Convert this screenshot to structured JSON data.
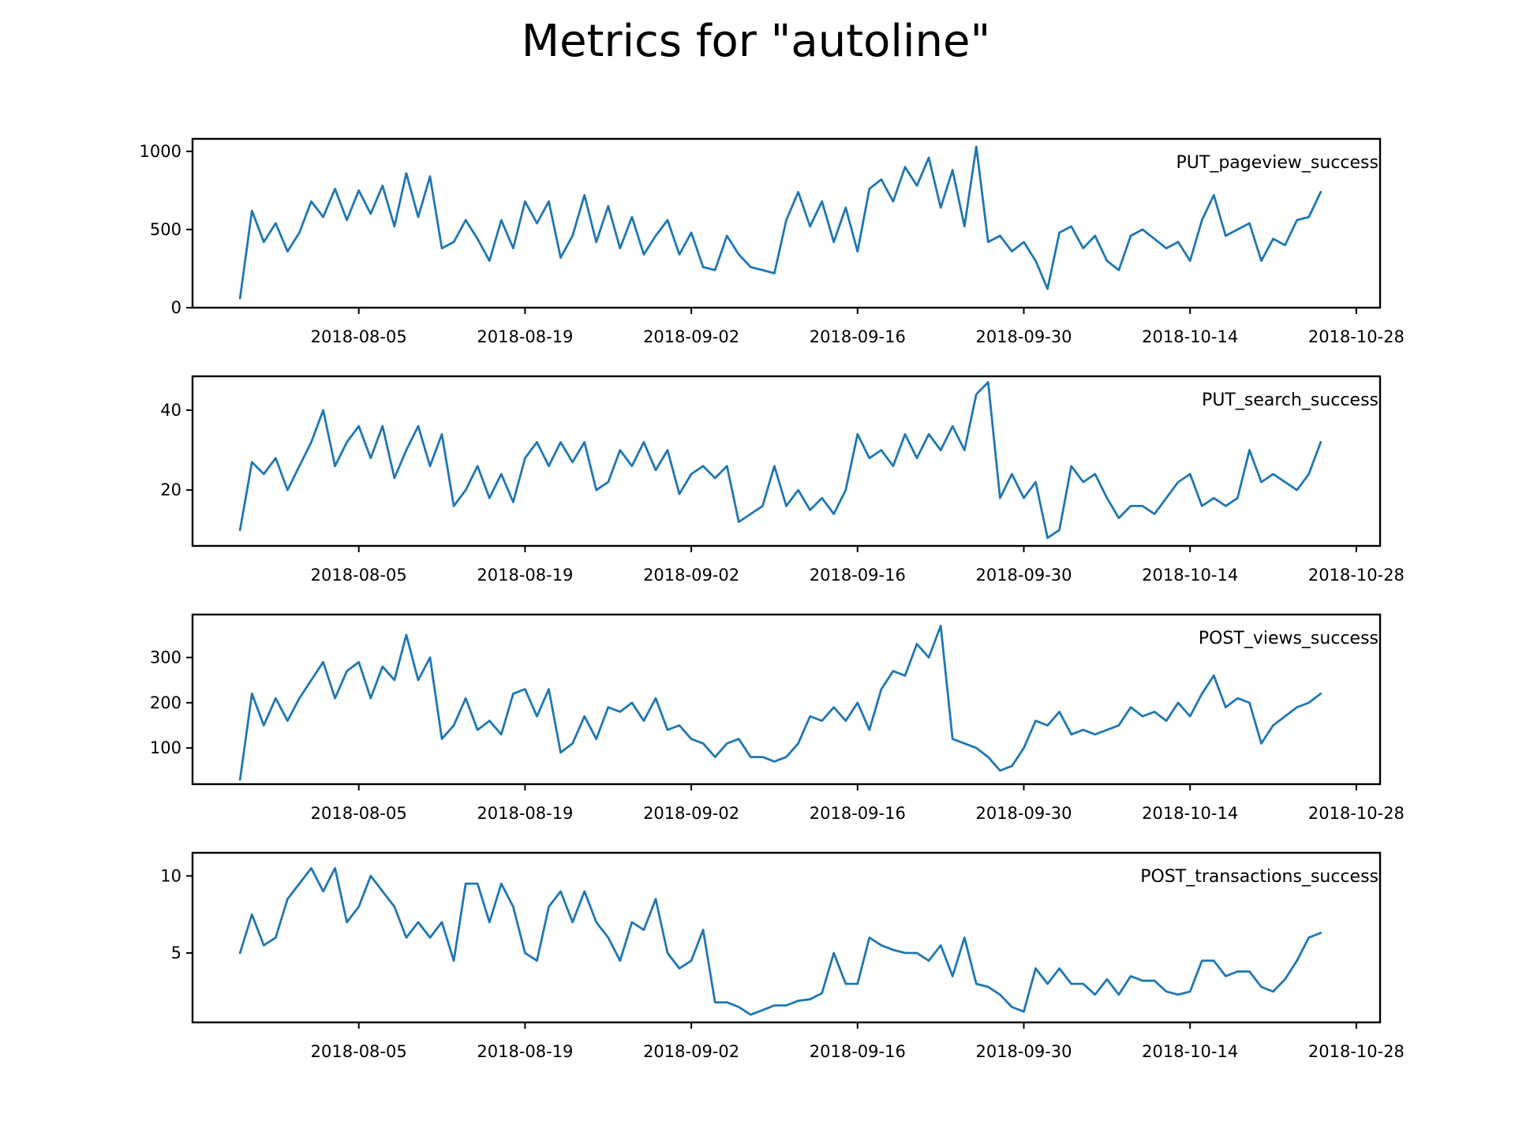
{
  "figure": {
    "title": "Metrics for \"autoline\"",
    "line_color": "#1f77b4"
  },
  "chart_data": [
    {
      "type": "line",
      "series_label": "PUT_pageview_success",
      "xticks": [
        "2018-08-05",
        "2018-08-19",
        "2018-09-02",
        "2018-09-16",
        "2018-09-30",
        "2018-10-14",
        "2018-10-28"
      ],
      "xlim": [
        "2018-07-22",
        "2018-10-30"
      ],
      "yticks": [
        0,
        500,
        1000
      ],
      "ylim": [
        0,
        1080
      ],
      "grid": false,
      "series": [
        {
          "x": [
            "2018-07-26",
            "2018-07-27",
            "2018-07-28",
            "2018-07-29",
            "2018-07-30",
            "2018-07-31",
            "2018-08-01",
            "2018-08-02",
            "2018-08-03",
            "2018-08-04",
            "2018-08-05",
            "2018-08-06",
            "2018-08-07",
            "2018-08-08",
            "2018-08-09",
            "2018-08-10",
            "2018-08-11",
            "2018-08-12",
            "2018-08-13",
            "2018-08-14",
            "2018-08-15",
            "2018-08-16",
            "2018-08-17",
            "2018-08-18",
            "2018-08-19",
            "2018-08-20",
            "2018-08-21",
            "2018-08-22",
            "2018-08-23",
            "2018-08-24",
            "2018-08-25",
            "2018-08-26",
            "2018-08-27",
            "2018-08-28",
            "2018-08-29",
            "2018-08-30",
            "2018-08-31",
            "2018-09-01",
            "2018-09-02",
            "2018-09-03",
            "2018-09-04",
            "2018-09-05",
            "2018-09-06",
            "2018-09-07",
            "2018-09-08",
            "2018-09-09",
            "2018-09-10",
            "2018-09-11",
            "2018-09-12",
            "2018-09-13",
            "2018-09-14",
            "2018-09-15",
            "2018-09-16",
            "2018-09-17",
            "2018-09-18",
            "2018-09-19",
            "2018-09-20",
            "2018-09-21",
            "2018-09-22",
            "2018-09-23",
            "2018-09-24",
            "2018-09-25",
            "2018-09-26",
            "2018-09-27",
            "2018-09-28",
            "2018-09-29",
            "2018-09-30",
            "2018-10-01",
            "2018-10-02",
            "2018-10-03",
            "2018-10-04",
            "2018-10-05",
            "2018-10-06",
            "2018-10-07",
            "2018-10-08",
            "2018-10-09",
            "2018-10-10",
            "2018-10-11",
            "2018-10-12",
            "2018-10-13",
            "2018-10-14",
            "2018-10-15",
            "2018-10-16",
            "2018-10-17",
            "2018-10-18",
            "2018-10-19",
            "2018-10-20",
            "2018-10-21",
            "2018-10-22",
            "2018-10-23",
            "2018-10-24",
            "2018-10-25"
          ],
          "y": [
            60,
            620,
            420,
            540,
            360,
            480,
            680,
            580,
            760,
            560,
            750,
            600,
            780,
            520,
            860,
            580,
            840,
            380,
            420,
            560,
            440,
            300,
            560,
            380,
            680,
            540,
            680,
            320,
            460,
            720,
            420,
            650,
            380,
            580,
            340,
            460,
            560,
            340,
            480,
            260,
            240,
            460,
            340,
            260,
            240,
            220,
            560,
            740,
            520,
            680,
            420,
            640,
            360,
            760,
            820,
            680,
            900,
            780,
            960,
            640,
            880,
            520,
            1030,
            420,
            460,
            360,
            420,
            300,
            120,
            480,
            520,
            380,
            460,
            300,
            240,
            460,
            500,
            440,
            380,
            420,
            300,
            560,
            720,
            460,
            500,
            540,
            300,
            440,
            400,
            560,
            580,
            740
          ],
          "name": ""
        }
      ]
    },
    {
      "type": "line",
      "series_label": "PUT_search_success",
      "xticks": [
        "2018-08-05",
        "2018-08-19",
        "2018-09-02",
        "2018-09-16",
        "2018-09-30",
        "2018-10-14",
        "2018-10-28"
      ],
      "xlim": [
        "2018-07-22",
        "2018-10-30"
      ],
      "yticks": [
        20,
        40
      ],
      "ylim": [
        6,
        48.5
      ],
      "grid": false,
      "series": [
        {
          "x": [
            "2018-07-26",
            "2018-07-27",
            "2018-07-28",
            "2018-07-29",
            "2018-07-30",
            "2018-07-31",
            "2018-08-01",
            "2018-08-02",
            "2018-08-03",
            "2018-08-04",
            "2018-08-05",
            "2018-08-06",
            "2018-08-07",
            "2018-08-08",
            "2018-08-09",
            "2018-08-10",
            "2018-08-11",
            "2018-08-12",
            "2018-08-13",
            "2018-08-14",
            "2018-08-15",
            "2018-08-16",
            "2018-08-17",
            "2018-08-18",
            "2018-08-19",
            "2018-08-20",
            "2018-08-21",
            "2018-08-22",
            "2018-08-23",
            "2018-08-24",
            "2018-08-25",
            "2018-08-26",
            "2018-08-27",
            "2018-08-28",
            "2018-08-29",
            "2018-08-30",
            "2018-08-31",
            "2018-09-01",
            "2018-09-02",
            "2018-09-03",
            "2018-09-04",
            "2018-09-05",
            "2018-09-06",
            "2018-09-07",
            "2018-09-08",
            "2018-09-09",
            "2018-09-10",
            "2018-09-11",
            "2018-09-12",
            "2018-09-13",
            "2018-09-14",
            "2018-09-15",
            "2018-09-16",
            "2018-09-17",
            "2018-09-18",
            "2018-09-19",
            "2018-09-20",
            "2018-09-21",
            "2018-09-22",
            "2018-09-23",
            "2018-09-24",
            "2018-09-25",
            "2018-09-26",
            "2018-09-27",
            "2018-09-28",
            "2018-09-29",
            "2018-09-30",
            "2018-10-01",
            "2018-10-02",
            "2018-10-03",
            "2018-10-04",
            "2018-10-05",
            "2018-10-06",
            "2018-10-07",
            "2018-10-08",
            "2018-10-09",
            "2018-10-10",
            "2018-10-11",
            "2018-10-12",
            "2018-10-13",
            "2018-10-14",
            "2018-10-15",
            "2018-10-16",
            "2018-10-17",
            "2018-10-18",
            "2018-10-19",
            "2018-10-20",
            "2018-10-21",
            "2018-10-22",
            "2018-10-23",
            "2018-10-24",
            "2018-10-25"
          ],
          "y": [
            10,
            27,
            24,
            28,
            20,
            26,
            32,
            40,
            26,
            32,
            36,
            28,
            36,
            23,
            30,
            36,
            26,
            34,
            16,
            20,
            26,
            18,
            24,
            17,
            28,
            32,
            26,
            32,
            27,
            32,
            20,
            22,
            30,
            26,
            32,
            25,
            30,
            19,
            24,
            26,
            23,
            26,
            12,
            14,
            16,
            26,
            16,
            20,
            15,
            18,
            14,
            20,
            34,
            28,
            30,
            26,
            34,
            28,
            34,
            30,
            36,
            30,
            44,
            47,
            18,
            24,
            18,
            22,
            8,
            10,
            26,
            22,
            24,
            18,
            13,
            16,
            16,
            14,
            18,
            22,
            24,
            16,
            18,
            16,
            18,
            30,
            22,
            24,
            22,
            20,
            24,
            32
          ],
          "name": ""
        }
      ]
    },
    {
      "type": "line",
      "series_label": "POST_views_success",
      "xticks": [
        "2018-08-05",
        "2018-08-19",
        "2018-09-02",
        "2018-09-16",
        "2018-09-30",
        "2018-10-14",
        "2018-10-28"
      ],
      "xlim": [
        "2018-07-22",
        "2018-10-30"
      ],
      "yticks": [
        100,
        200,
        300
      ],
      "ylim": [
        20,
        395
      ],
      "grid": false,
      "series": [
        {
          "x": [
            "2018-07-26",
            "2018-07-27",
            "2018-07-28",
            "2018-07-29",
            "2018-07-30",
            "2018-07-31",
            "2018-08-01",
            "2018-08-02",
            "2018-08-03",
            "2018-08-04",
            "2018-08-05",
            "2018-08-06",
            "2018-08-07",
            "2018-08-08",
            "2018-08-09",
            "2018-08-10",
            "2018-08-11",
            "2018-08-12",
            "2018-08-13",
            "2018-08-14",
            "2018-08-15",
            "2018-08-16",
            "2018-08-17",
            "2018-08-18",
            "2018-08-19",
            "2018-08-20",
            "2018-08-21",
            "2018-08-22",
            "2018-08-23",
            "2018-08-24",
            "2018-08-25",
            "2018-08-26",
            "2018-08-27",
            "2018-08-28",
            "2018-08-29",
            "2018-08-30",
            "2018-08-31",
            "2018-09-01",
            "2018-09-02",
            "2018-09-03",
            "2018-09-04",
            "2018-09-05",
            "2018-09-06",
            "2018-09-07",
            "2018-09-08",
            "2018-09-09",
            "2018-09-10",
            "2018-09-11",
            "2018-09-12",
            "2018-09-13",
            "2018-09-14",
            "2018-09-15",
            "2018-09-16",
            "2018-09-17",
            "2018-09-18",
            "2018-09-19",
            "2018-09-20",
            "2018-09-21",
            "2018-09-22",
            "2018-09-23",
            "2018-09-24",
            "2018-09-25",
            "2018-09-26",
            "2018-09-27",
            "2018-09-28",
            "2018-09-29",
            "2018-09-30",
            "2018-10-01",
            "2018-10-02",
            "2018-10-03",
            "2018-10-04",
            "2018-10-05",
            "2018-10-06",
            "2018-10-07",
            "2018-10-08",
            "2018-10-09",
            "2018-10-10",
            "2018-10-11",
            "2018-10-12",
            "2018-10-13",
            "2018-10-14",
            "2018-10-15",
            "2018-10-16",
            "2018-10-17",
            "2018-10-18",
            "2018-10-19",
            "2018-10-20",
            "2018-10-21",
            "2018-10-22",
            "2018-10-23",
            "2018-10-24",
            "2018-10-25"
          ],
          "y": [
            30,
            220,
            150,
            210,
            160,
            210,
            250,
            290,
            210,
            270,
            290,
            210,
            280,
            250,
            350,
            250,
            300,
            120,
            150,
            210,
            140,
            160,
            130,
            220,
            230,
            170,
            230,
            90,
            110,
            170,
            120,
            190,
            180,
            200,
            160,
            210,
            140,
            150,
            120,
            110,
            80,
            110,
            120,
            80,
            80,
            70,
            80,
            110,
            170,
            160,
            190,
            160,
            200,
            140,
            230,
            270,
            260,
            330,
            300,
            370,
            120,
            110,
            100,
            80,
            50,
            60,
            100,
            160,
            150,
            180,
            130,
            140,
            130,
            140,
            150,
            190,
            170,
            180,
            160,
            200,
            170,
            220,
            260,
            190,
            210,
            200,
            110,
            150,
            170,
            190,
            200,
            220
          ],
          "name": ""
        }
      ]
    },
    {
      "type": "line",
      "series_label": "POST_transactions_success",
      "xticks": [
        "2018-08-05",
        "2018-08-19",
        "2018-09-02",
        "2018-09-16",
        "2018-09-30",
        "2018-10-14",
        "2018-10-28"
      ],
      "xlim": [
        "2018-07-22",
        "2018-10-30"
      ],
      "yticks": [
        5,
        10
      ],
      "ylim": [
        0.5,
        11.5
      ],
      "grid": false,
      "series": [
        {
          "x": [
            "2018-07-26",
            "2018-07-27",
            "2018-07-28",
            "2018-07-29",
            "2018-07-30",
            "2018-07-31",
            "2018-08-01",
            "2018-08-02",
            "2018-08-03",
            "2018-08-04",
            "2018-08-05",
            "2018-08-06",
            "2018-08-07",
            "2018-08-08",
            "2018-08-09",
            "2018-08-10",
            "2018-08-11",
            "2018-08-12",
            "2018-08-13",
            "2018-08-14",
            "2018-08-15",
            "2018-08-16",
            "2018-08-17",
            "2018-08-18",
            "2018-08-19",
            "2018-08-20",
            "2018-08-21",
            "2018-08-22",
            "2018-08-23",
            "2018-08-24",
            "2018-08-25",
            "2018-08-26",
            "2018-08-27",
            "2018-08-28",
            "2018-08-29",
            "2018-08-30",
            "2018-08-31",
            "2018-09-01",
            "2018-09-02",
            "2018-09-03",
            "2018-09-04",
            "2018-09-05",
            "2018-09-06",
            "2018-09-07",
            "2018-09-08",
            "2018-09-09",
            "2018-09-10",
            "2018-09-11",
            "2018-09-12",
            "2018-09-13",
            "2018-09-14",
            "2018-09-15",
            "2018-09-16",
            "2018-09-17",
            "2018-09-18",
            "2018-09-19",
            "2018-09-20",
            "2018-09-21",
            "2018-09-22",
            "2018-09-23",
            "2018-09-24",
            "2018-09-25",
            "2018-09-26",
            "2018-09-27",
            "2018-09-28",
            "2018-09-29",
            "2018-09-30",
            "2018-10-01",
            "2018-10-02",
            "2018-10-03",
            "2018-10-04",
            "2018-10-05",
            "2018-10-06",
            "2018-10-07",
            "2018-10-08",
            "2018-10-09",
            "2018-10-10",
            "2018-10-11",
            "2018-10-12",
            "2018-10-13",
            "2018-10-14",
            "2018-10-15",
            "2018-10-16",
            "2018-10-17",
            "2018-10-18",
            "2018-10-19",
            "2018-10-20",
            "2018-10-21",
            "2018-10-22",
            "2018-10-23",
            "2018-10-24",
            "2018-10-25"
          ],
          "y": [
            5,
            7.5,
            5.5,
            6,
            8.5,
            9.5,
            10.5,
            9,
            10.5,
            7,
            8,
            10,
            9,
            8,
            6,
            7,
            6,
            7,
            4.5,
            9.5,
            9.5,
            7,
            9.5,
            8,
            5,
            4.5,
            8,
            9,
            7,
            9,
            7,
            6,
            4.5,
            7,
            6.5,
            8.5,
            5,
            4,
            4.5,
            6.5,
            1.8,
            1.8,
            1.5,
            1,
            1.3,
            1.6,
            1.6,
            1.9,
            2,
            2.4,
            5,
            3,
            3,
            6,
            5.5,
            5.2,
            5,
            5,
            4.5,
            5.5,
            3.5,
            6,
            3,
            2.8,
            2.3,
            1.5,
            1.2,
            4,
            3,
            4,
            3,
            3,
            2.3,
            3.3,
            2.3,
            3.5,
            3.2,
            3.2,
            2.5,
            2.3,
            2.5,
            4.5,
            4.5,
            3.5,
            3.8,
            3.8,
            2.8,
            2.5,
            3.3,
            4.5,
            6,
            6.3
          ],
          "name": ""
        }
      ]
    }
  ]
}
